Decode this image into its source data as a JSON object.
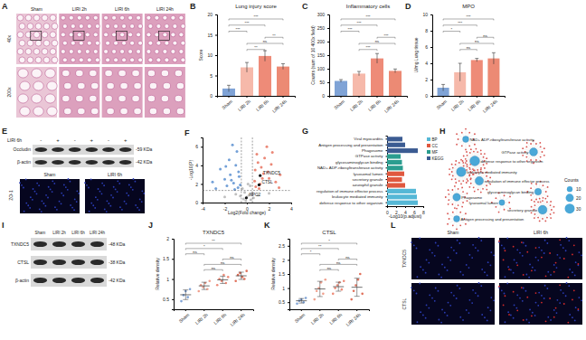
{
  "chart_data": [
    {
      "panel": "B",
      "type": "bar",
      "title": "Lung injury score",
      "y_label": "Score",
      "categories": [
        "Sham",
        "LIRI 2h",
        "LIRI 6h",
        "LIRI 24h"
      ],
      "values": [
        1.8,
        7.0,
        9.8,
        7.2
      ],
      "errors": [
        0.8,
        1.2,
        1.3,
        0.7
      ],
      "colors": [
        "#7fa3d6",
        "#f6b9aa",
        "#ee8b78",
        "#ec8a74"
      ],
      "ylim": [
        0,
        20
      ],
      "yticks": [
        0,
        5,
        10,
        15,
        20
      ],
      "comparisons": [
        {
          "groups": [
            0,
            3
          ],
          "label": "***"
        },
        {
          "groups": [
            0,
            2
          ],
          "label": "***"
        },
        {
          "groups": [
            0,
            1
          ],
          "label": "***"
        },
        {
          "groups": [
            2,
            3
          ],
          "label": "**"
        },
        {
          "groups": [
            1,
            3
          ],
          "label": "ns"
        },
        {
          "groups": [
            1,
            2
          ],
          "label": "**"
        }
      ]
    },
    {
      "panel": "C",
      "type": "bar",
      "title": "Inflammatory cells",
      "y_label": "Counts (sum of 10 400x field)",
      "categories": [
        "Sham",
        "LIRI 2h",
        "LIRI 6h",
        "LIRI 24h"
      ],
      "values": [
        55,
        82,
        138,
        92
      ],
      "errors": [
        5,
        8,
        18,
        7
      ],
      "colors": [
        "#7fa3d6",
        "#f6b9aa",
        "#ee8b78",
        "#ec8a74"
      ],
      "ylim": [
        0,
        300
      ],
      "yticks": [
        0,
        50,
        100,
        150,
        200,
        250,
        300
      ],
      "comparisons": [
        {
          "groups": [
            0,
            3
          ],
          "label": "***"
        },
        {
          "groups": [
            0,
            2
          ],
          "label": "***"
        },
        {
          "groups": [
            0,
            1
          ],
          "label": "***"
        },
        {
          "groups": [
            2,
            3
          ],
          "label": "***"
        },
        {
          "groups": [
            1,
            3
          ],
          "label": "ns"
        },
        {
          "groups": [
            1,
            2
          ],
          "label": "***"
        }
      ]
    },
    {
      "panel": "D",
      "type": "bar",
      "title": "MPO",
      "y_label": "U/mg Lung tissue",
      "categories": [
        "Sham",
        "LIRI 2h",
        "LIRI 6h",
        "LIRI 24h"
      ],
      "values": [
        1.0,
        2.9,
        4.4,
        4.6
      ],
      "errors": [
        0.4,
        1.1,
        0.2,
        0.7
      ],
      "colors": [
        "#7fa3d6",
        "#f6b9aa",
        "#ee8b78",
        "#ec8a74"
      ],
      "ylim": [
        0,
        10
      ],
      "yticks": [
        0,
        2,
        4,
        6,
        8,
        10
      ],
      "comparisons": [
        {
          "groups": [
            0,
            3
          ],
          "label": "***"
        },
        {
          "groups": [
            0,
            2
          ],
          "label": "***"
        },
        {
          "groups": [
            0,
            1
          ],
          "label": "*"
        },
        {
          "groups": [
            2,
            3
          ],
          "label": "ns"
        },
        {
          "groups": [
            1,
            3
          ],
          "label": "ns"
        },
        {
          "groups": [
            1,
            2
          ],
          "label": "ns"
        }
      ]
    },
    {
      "panel": "F",
      "type": "scatter",
      "x_label": "Log2(Fold change)",
      "y_label": "-Log10(P)",
      "series": [
        {
          "color": "#5b8fd0",
          "x": [
            -1.2,
            -1.5,
            -0.8,
            -2.0,
            -1.0,
            -0.9,
            -1.3,
            -1.8,
            -0.7,
            -2.4,
            -1.1,
            -3.1,
            -1.6,
            -0.6,
            -1.4,
            -2.8,
            -0.75,
            -1.9
          ],
          "values": [
            2.1,
            3.0,
            1.6,
            2.5,
            4.0,
            5.5,
            6.2,
            1.8,
            2.8,
            3.6,
            1.4,
            2.2,
            4.6,
            1.9,
            2.4,
            1.5,
            3.3,
            3.9
          ]
        },
        {
          "color": "#e8735f",
          "x": [
            1.2,
            1.5,
            0.8,
            2.0,
            1.0,
            0.9,
            1.8,
            2.3,
            1.3,
            2.6,
            1.1,
            3.0,
            1.6,
            0.7,
            1.4,
            2.9,
            0.75,
            1.9,
            2.2
          ],
          "values": [
            2.0,
            3.1,
            1.7,
            2.6,
            4.3,
            5.2,
            6.0,
            5.4,
            3.8,
            2.2,
            1.5,
            3.0,
            4.8,
            2.3,
            2.6,
            1.6,
            3.5,
            3.3,
            4.1
          ]
        },
        {
          "color": "#b5b5b5",
          "x": [
            -0.3,
            0.2,
            0.1,
            -0.2,
            0.35,
            -0.4,
            0.0,
            0.3,
            -0.1,
            0.45,
            1.0,
            -1.0,
            0.6,
            -0.6,
            2.0,
            -2.0
          ],
          "values": [
            0.4,
            0.8,
            2.0,
            1.1,
            0.3,
            1.5,
            0.6,
            1.8,
            0.2,
            1.0,
            0.8,
            0.9,
            0.5,
            0.7,
            1.0,
            0.6
          ]
        }
      ],
      "xlim": [
        -4,
        4
      ],
      "xticks": [
        -4,
        -2,
        0,
        2,
        4
      ],
      "ylim": [
        0,
        7
      ],
      "yticks": [
        0,
        2,
        4,
        6
      ],
      "thresholds": {
        "x": [
          -0.5,
          0.5
        ],
        "y": 1.3
      },
      "annotations": [
        {
          "text": "TXNDC5",
          "x": 1.2,
          "y": 2.9
        },
        {
          "text": "CTSL",
          "x": 1.1,
          "y": 1.9
        },
        {
          "text": "NPC2",
          "x": -0.05,
          "y": 0.5
        }
      ]
    },
    {
      "panel": "G",
      "type": "bar",
      "orientation": "horizontal",
      "x_label": "-Log10(p.adjust)",
      "categories": [
        "Viral myocarditis",
        "Antigen processing and presentation",
        "Phagosome",
        "GTPase activity",
        "glycosaminoglycan binding",
        "NAD+ ADP-ribosyltransferase activity",
        "lysosomal lumen",
        "secretory granule",
        "azurophil granule",
        "regulation of immune effector process",
        "leukocyte mediated immunity",
        "defense response to other organism"
      ],
      "values": [
        3.4,
        4.0,
        6.8,
        3.0,
        3.3,
        3.5,
        3.8,
        3.3,
        4.0,
        6.4,
        6.6,
        6.8
      ],
      "groups": [
        3,
        3,
        3,
        2,
        2,
        2,
        1,
        1,
        1,
        0,
        0,
        0
      ],
      "group_names": [
        "BP",
        "CC",
        "MF",
        "KEGG"
      ],
      "group_colors": [
        "#55b8d6",
        "#e0583f",
        "#2a9d8f",
        "#3b5b92"
      ],
      "xlim": [
        0,
        8
      ],
      "xticks": [
        0,
        2,
        4,
        6,
        8
      ],
      "legend": "right"
    },
    {
      "panel": "J",
      "type": "scatter",
      "title": "TXNDC5",
      "y_label": "Relative density",
      "categories": [
        "Sham",
        "LIRI 2h",
        "LIRI 6h",
        "LIRI 24h"
      ],
      "points": [
        [
          0.45,
          0.6,
          0.7,
          0.55,
          0.75
        ],
        [
          0.7,
          0.85,
          0.8,
          0.9,
          0.75,
          0.95
        ],
        [
          0.85,
          1.0,
          0.95,
          1.1,
          0.9,
          1.05
        ],
        [
          0.95,
          1.1,
          1.15,
          1.05,
          1.0,
          1.2
        ]
      ],
      "values": [
        0.61,
        0.83,
        0.98,
        1.08
      ],
      "errors": [
        0.12,
        0.09,
        0.09,
        0.09
      ],
      "colors": [
        "#7fa3d6",
        "#f0a08e",
        "#ee8b78",
        "#e0705a"
      ],
      "ylim": [
        0.25,
        2.0
      ],
      "yticks": [
        0.5,
        1,
        1.5,
        2
      ],
      "comparisons": [
        {
          "groups": [
            0,
            3
          ],
          "label": "**"
        },
        {
          "groups": [
            0,
            2
          ],
          "label": "*"
        },
        {
          "groups": [
            0,
            1
          ],
          "label": "ns"
        },
        {
          "groups": [
            2,
            3
          ],
          "label": "ns"
        },
        {
          "groups": [
            1,
            3
          ],
          "label": "ns"
        },
        {
          "groups": [
            1,
            2
          ],
          "label": "ns"
        }
      ]
    },
    {
      "panel": "K",
      "type": "scatter",
      "title": "CTSL",
      "y_label": "Relative density",
      "categories": [
        "Sham",
        "LIRI 2h",
        "LIRI 6h",
        "LIRI 24h"
      ],
      "points": [
        [
          0.45,
          0.55,
          0.6,
          0.5,
          0.65
        ],
        [
          0.6,
          0.9,
          1.0,
          1.2,
          0.8,
          1.3
        ],
        [
          0.8,
          1.0,
          1.1,
          1.2,
          0.95,
          1.25
        ],
        [
          0.6,
          0.9,
          1.1,
          1.3,
          1.5,
          0.8
        ]
      ],
      "values": [
        0.55,
        0.97,
        1.05,
        1.03
      ],
      "errors": [
        0.08,
        0.27,
        0.16,
        0.32
      ],
      "colors": [
        "#7fa3d6",
        "#f0a08e",
        "#ee8b78",
        "#e0705a"
      ],
      "ylim": [
        0.25,
        2.75
      ],
      "yticks": [
        0.5,
        1,
        1.5,
        2,
        2.5
      ],
      "comparisons": [
        {
          "groups": [
            0,
            3
          ],
          "label": "*"
        },
        {
          "groups": [
            0,
            2
          ],
          "label": "**"
        },
        {
          "groups": [
            0,
            1
          ],
          "label": "*"
        },
        {
          "groups": [
            2,
            3
          ],
          "label": "ns"
        },
        {
          "groups": [
            1,
            3
          ],
          "label": "ns"
        },
        {
          "groups": [
            1,
            2
          ],
          "label": "ns"
        }
      ]
    }
  ],
  "histology": {
    "panel": "A",
    "columns": [
      "Sham",
      "LIRI 2h",
      "LIRI 6h",
      "LIRI 24h"
    ],
    "rows": [
      "40x",
      "200x"
    ]
  },
  "blot_e": {
    "panel": "E",
    "lane_header": "LIRI 6h",
    "lanes": [
      "-",
      "+",
      "-",
      "+",
      "-",
      "+"
    ],
    "bands": [
      {
        "name": "Occludin",
        "size": "-59 KDa"
      },
      {
        "name": "β-actin",
        "size": "-42 KDa"
      }
    ],
    "fluorescence": {
      "stain": "ZO-1",
      "columns": [
        "Sham",
        "LIRI 6h"
      ]
    }
  },
  "network": {
    "panel": "H",
    "legend_title": "Counts",
    "legend_values": [
      10,
      20,
      30
    ],
    "nodes": [
      {
        "label": "NAD+ ADP-ribosyltransferase activity",
        "count": 12
      },
      {
        "label": "GTPase activity",
        "count": 20
      },
      {
        "label": "defense response to other organism",
        "count": 30
      },
      {
        "label": "leukocyte mediated immunity",
        "count": 28
      },
      {
        "label": "regulation of immune effector process",
        "count": 22
      },
      {
        "label": "glycosaminoglycan binding",
        "count": 14
      },
      {
        "label": "lysosomal lumen",
        "count": 10
      },
      {
        "label": "Antigen processing and presentation",
        "count": 12
      },
      {
        "label": "Phagosome",
        "count": 18
      },
      {
        "label": "secretory granule",
        "count": 24
      }
    ]
  },
  "blot_i": {
    "panel": "I",
    "columns": [
      "Sham",
      "LIRI 2h",
      "LIRI 6h",
      "LIRI 24h"
    ],
    "bands": [
      {
        "name": "TXNDC5",
        "size": "-48 KDa"
      },
      {
        "name": "CTSL",
        "size": "-38 KDa"
      },
      {
        "name": "β-actin",
        "size": "-42 KDa"
      }
    ]
  },
  "fluorescence_l": {
    "panel": "L",
    "columns": [
      "Sham",
      "LIRI 6h"
    ],
    "rows": [
      "TXNDC5",
      "CTSL"
    ]
  }
}
